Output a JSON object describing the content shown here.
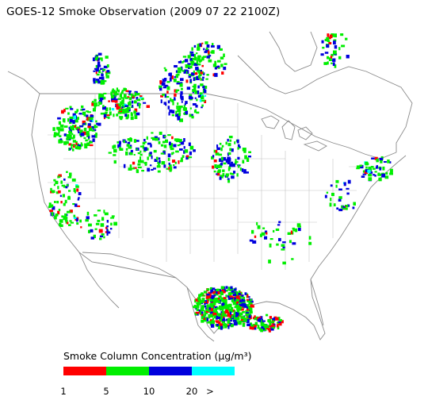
{
  "title": "GOES-12 Smoke Observation (2009 07 22  2100Z)",
  "legend": {
    "title": "Smoke Column Concentration (µg/m³)",
    "bins": [
      {
        "label": "1",
        "color": "#ff0000"
      },
      {
        "label": "5",
        "color": "#00ee00"
      },
      {
        "label": "10",
        "color": "#0000dd"
      },
      {
        "label": "20",
        "color": "#00ffff"
      }
    ],
    "overflow_label": ">"
  }
}
